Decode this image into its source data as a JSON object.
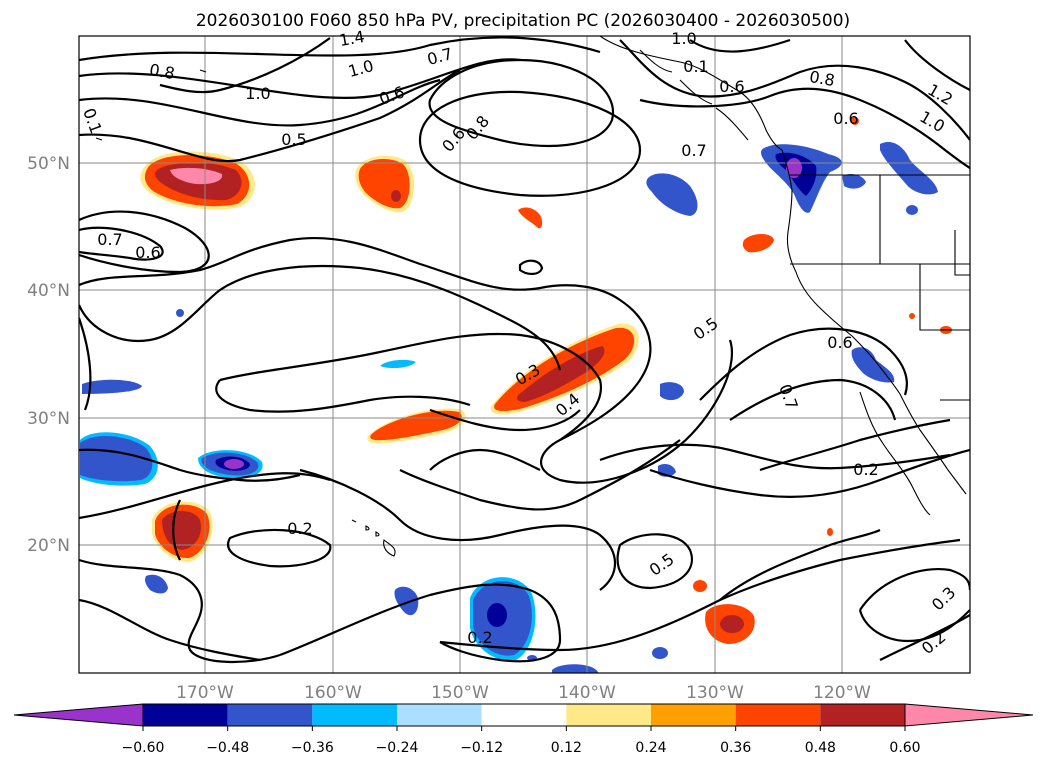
{
  "title": "2026030100 F060 850 hPa PV, precipitation PC (2026030400 - 2026030500)",
  "axis_color": "#808080",
  "lat_ticks": [
    "50°N",
    "40°N",
    "30°N",
    "20°N"
  ],
  "lon_ticks": [
    "170°W",
    "160°W",
    "150°W",
    "140°W",
    "130°W",
    "120°W"
  ],
  "colorbar": {
    "tick_labels": [
      "−0.60",
      "−0.48",
      "−0.36",
      "−0.24",
      "−0.12",
      "0.12",
      "0.24",
      "0.36",
      "0.48",
      "0.60"
    ],
    "colors": [
      "#9933cc",
      "#000099",
      "#3355cc",
      "#00bbff",
      "#aadfff",
      "#ffffff",
      "#ffe888",
      "#ffa000",
      "#ff4400",
      "#b22222",
      "#ff88aa",
      "#ff88aa"
    ]
  },
  "contour_labels": [
    "1.4",
    "1.0",
    "0.7",
    "1.0",
    "0.1",
    "1.2",
    "0.8",
    "1.0",
    "0.6",
    "0.6",
    "0.8",
    "0.6",
    "1.0",
    "0.5",
    "0.8",
    "0.7",
    "0.6",
    "0.7",
    "0.6",
    "0.5",
    "0.3",
    "0.4",
    "0.6",
    "0.7",
    "0.2",
    "0.2",
    "0.5",
    "0.2",
    "0.3",
    "0.2",
    "0.1"
  ]
}
